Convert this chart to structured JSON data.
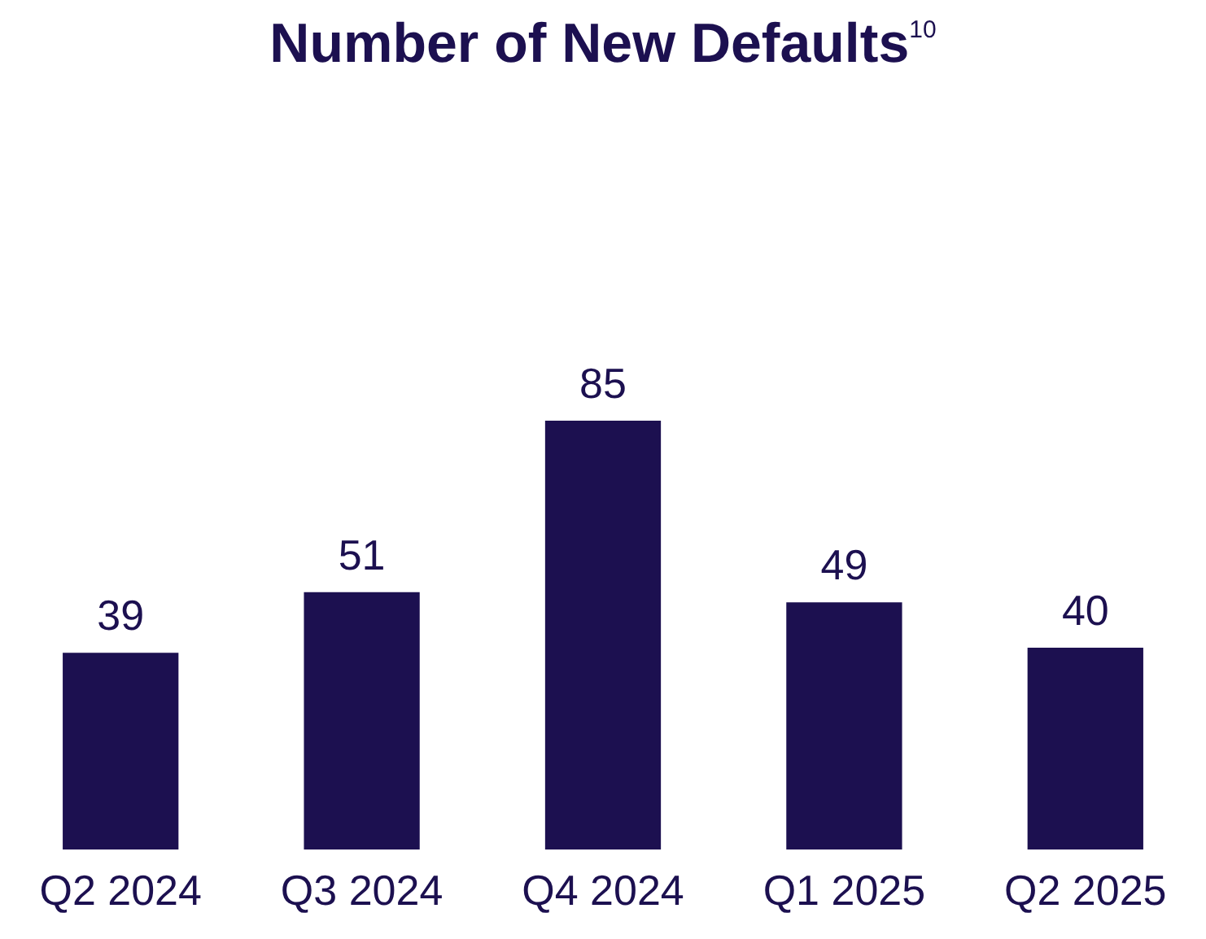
{
  "chart_data": {
    "type": "bar",
    "title": "Number of New Defaults$^{10}$",
    "categories": [
      "Q2 2024",
      "Q3 2024",
      "Q4 2024",
      "Q1 2025",
      "Q2 2025"
    ],
    "values": [
      39,
      51,
      85,
      49,
      40
    ],
    "color": "#1c1050",
    "data_labels": true
  }
}
